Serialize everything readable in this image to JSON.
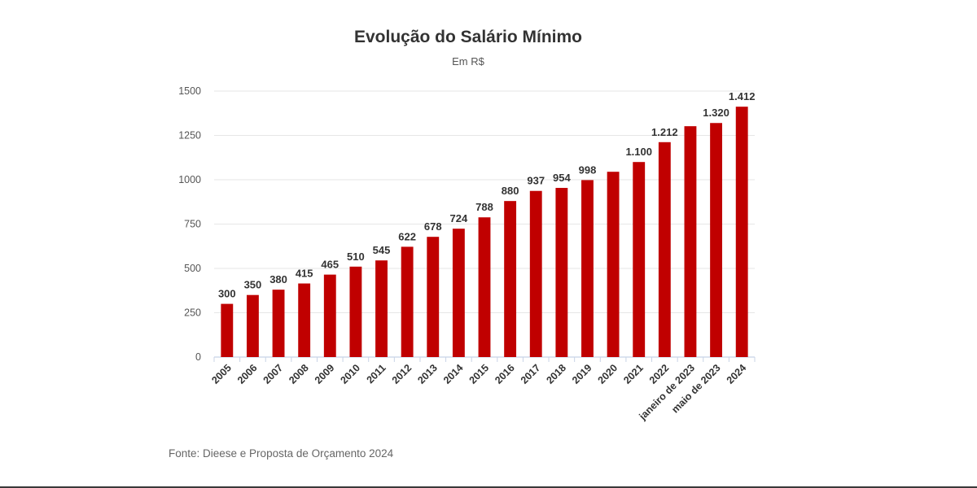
{
  "chart_data": {
    "type": "bar",
    "title": "Evolução do Salário Mínimo",
    "subtitle": "Em R$",
    "categories": [
      "2005",
      "2006",
      "2007",
      "2008",
      "2009",
      "2010",
      "2011",
      "2012",
      "2013",
      "2014",
      "2015",
      "2016",
      "2017",
      "2018",
      "2019",
      "2020",
      "2021",
      "2022",
      "janeiro de 2023",
      "maio de 2023",
      "2024"
    ],
    "values": [
      300,
      350,
      380,
      415,
      465,
      510,
      545,
      622,
      678,
      724,
      788,
      880,
      937,
      954,
      998,
      1045,
      1100,
      1212,
      1302,
      1320,
      1412
    ],
    "data_labels": [
      "300",
      "350",
      "380",
      "415",
      "465",
      "510",
      "545",
      "622",
      "678",
      "724",
      "788",
      "880",
      "937",
      "954",
      "998",
      "",
      "1.100",
      "1.212",
      "",
      "1.320",
      "1.412"
    ],
    "ylim": [
      0,
      1500
    ],
    "yticks": [
      0,
      250,
      500,
      750,
      1000,
      1250,
      1500
    ],
    "xlabel": "",
    "ylabel": "",
    "grid": true,
    "bar_color": "#c00000",
    "source": "Fonte: Dieese e Proposta de Orçamento 2024"
  }
}
